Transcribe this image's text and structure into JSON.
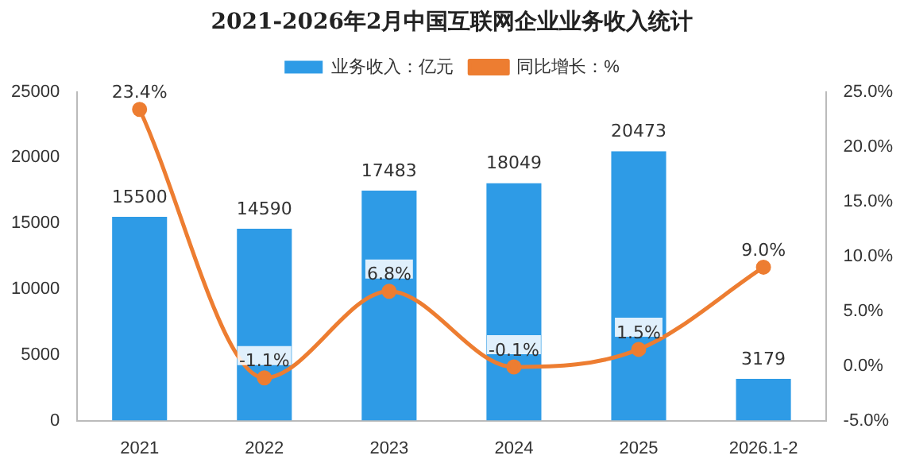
{
  "chart_data": {
    "type": "bar",
    "title": "2021-2026年2月中国互联网企业业务收入统计",
    "categories": [
      "2021",
      "2022",
      "2023",
      "2024",
      "2025",
      "2026.1-2"
    ],
    "series": [
      {
        "name": "业务收入：亿元",
        "color": "#2e9be6",
        "values": [
          15500,
          14590,
          17483,
          18049,
          20473,
          3179
        ],
        "value_labels": [
          "15500",
          "14590",
          "17483",
          "18049",
          "20473",
          "3179"
        ]
      },
      {
        "name": "同比增长：%",
        "type": "line",
        "axis": "y2",
        "color": "#ed7d31",
        "marker": "circle",
        "values": [
          23.4,
          -1.1,
          6.8,
          -0.1,
          1.5,
          9.0
        ],
        "value_labels": [
          "23.4%",
          "-1.1%",
          "6.8%",
          "-0.1%",
          "1.5%",
          "9.0%"
        ]
      }
    ],
    "ylim": [
      0,
      25000
    ],
    "yticks": [
      0,
      5000,
      10000,
      15000,
      20000,
      25000
    ],
    "y2lim": [
      -5,
      25
    ],
    "y2ticks": [
      {
        "value": -5,
        "label": "-5.0%"
      },
      {
        "value": 0,
        "label": "0.0%"
      },
      {
        "value": 5,
        "label": "5.0%"
      },
      {
        "value": 10,
        "label": "10.0%"
      },
      {
        "value": 15,
        "label": "15.0%"
      },
      {
        "value": 20,
        "label": "20.0%"
      },
      {
        "value": 25,
        "label": "25.0%"
      }
    ],
    "legend": "top"
  }
}
